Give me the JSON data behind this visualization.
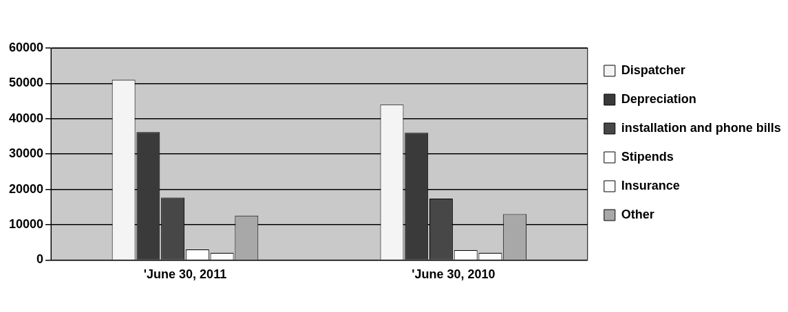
{
  "chart_data": {
    "type": "bar",
    "categories": [
      "'June 30, 2011",
      "'June 30, 2010"
    ],
    "series": [
      {
        "name": "Dispatcher",
        "color": "#f4f4f4",
        "values": [
          51000,
          44000
        ]
      },
      {
        "name": "Depreciation",
        "color": "#3a3a3a",
        "values": [
          36200,
          36000
        ]
      },
      {
        "name": "installation and phone bills",
        "color": "#474747",
        "values": [
          17700,
          17400
        ]
      },
      {
        "name": "Stipends",
        "color": "#ffffff",
        "values": [
          3000,
          2800
        ]
      },
      {
        "name": "Insurance",
        "color": "#fcfcfc",
        "values": [
          2000,
          2000
        ]
      },
      {
        "name": "Other",
        "color": "#a8a8a8",
        "values": [
          12600,
          13000
        ]
      }
    ],
    "ylim": [
      0,
      60000
    ],
    "yticks": [
      0,
      10000,
      20000,
      30000,
      40000,
      50000,
      60000
    ],
    "grid": "y",
    "legend": "right"
  }
}
